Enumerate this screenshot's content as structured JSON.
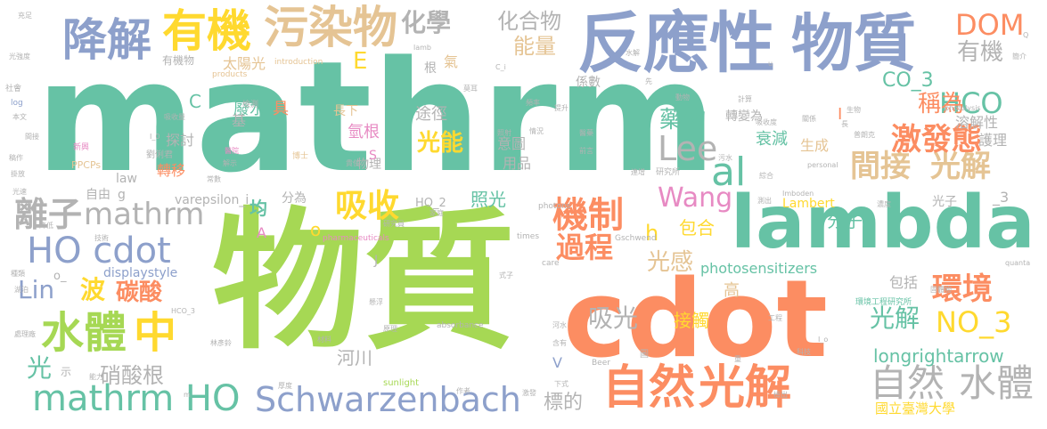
{
  "word_cloud": {
    "words": [
      {
        "text": "mathrm",
        "color": "#66c2a5"
      },
      {
        "text": "物質",
        "color": "#a6d854"
      },
      {
        "text": "cdot",
        "color": "#fc8d62"
      },
      {
        "text": "lambda",
        "color": "#66c2a5"
      },
      {
        "text": "反應性",
        "color": "#8da0cb"
      },
      {
        "text": "物質",
        "color": "#8da0cb"
      },
      {
        "text": "降解",
        "color": "#8da0cb"
      },
      {
        "text": "有機",
        "color": "#ffd92f"
      },
      {
        "text": "污染物",
        "color": "#e5c494"
      },
      {
        "text": "自然",
        "color": "#fc8d62"
      },
      {
        "text": "光解",
        "color": "#fc8d62"
      },
      {
        "text": "水體",
        "color": "#a6d854"
      },
      {
        "text": "中",
        "color": "#ffd92f"
      },
      {
        "text": "HO cdot",
        "color": "#8da0cb"
      },
      {
        "text": "mathrm HO",
        "color": "#66c2a5"
      },
      {
        "text": "Schwarzenbach",
        "color": "#8da0cb"
      },
      {
        "text": "離子",
        "color": "#b3b3b3"
      },
      {
        "text": "mathrm",
        "color": "#b3b3b3"
      },
      {
        "text": "機制",
        "color": "#fc8d62"
      },
      {
        "text": "al",
        "color": "#66c2a5"
      },
      {
        "text": "Lee",
        "color": "#b3b3b3"
      },
      {
        "text": "自然",
        "color": "#b3b3b3"
      },
      {
        "text": "水體",
        "color": "#b3b3b3"
      },
      {
        "text": "間接",
        "color": "#e5c494"
      },
      {
        "text": "光解",
        "color": "#e5c494"
      },
      {
        "text": "激發態",
        "color": "#fc8d62"
      },
      {
        "text": "環境",
        "color": "#fc8d62"
      },
      {
        "text": "NO_3",
        "color": "#ffd92f"
      },
      {
        "text": "HCO",
        "color": "#66c2a5"
      },
      {
        "text": "DOM",
        "color": "#fc8d62"
      },
      {
        "text": "有機",
        "color": "#b3b3b3"
      },
      {
        "text": "化學",
        "color": "#b3b3b3"
      },
      {
        "text": "化合物",
        "color": "#b3b3b3"
      },
      {
        "text": "能量",
        "color": "#e5c494"
      },
      {
        "text": "吸收",
        "color": "#ffd92f"
      },
      {
        "text": "過程",
        "color": "#fc8d62"
      },
      {
        "text": "光感",
        "color": "#e5c494"
      },
      {
        "text": "Wang",
        "color": "#e78ac3"
      },
      {
        "text": "Lin",
        "color": "#8da0cb"
      },
      {
        "text": "波",
        "color": "#ffd92f"
      },
      {
        "text": "吸光",
        "color": "#b3b3b3"
      },
      {
        "text": "光解",
        "color": "#66c2a5"
      },
      {
        "text": "光",
        "color": "#66c2a5"
      },
      {
        "text": "碳酸",
        "color": "#fc8d62"
      },
      {
        "text": "硝酸根",
        "color": "#b3b3b3"
      },
      {
        "text": "藥物",
        "color": "#66c2a5"
      },
      {
        "text": "光能",
        "color": "#ffd92f"
      },
      {
        "text": "稱為",
        "color": "#fc8d62"
      },
      {
        "text": "CO_3",
        "color": "#66c2a5"
      },
      {
        "text": "longrightarrow",
        "color": "#66c2a5"
      },
      {
        "text": "photosensitizers",
        "color": "#66c2a5"
      },
      {
        "text": "標的",
        "color": "#b3b3b3"
      },
      {
        "text": "國立臺灣大學",
        "color": "#ffd92f"
      },
      {
        "text": "河川",
        "color": "#b3b3b3"
      },
      {
        "text": "分子",
        "color": "#66c2a5"
      },
      {
        "text": "包合",
        "color": "#ffd92f"
      },
      {
        "text": "接觸",
        "color": "#ffd92f"
      },
      {
        "text": "照光",
        "color": "#66c2a5"
      },
      {
        "text": "衰減",
        "color": "#66c2a5"
      },
      {
        "text": "氫根",
        "color": "#e78ac3"
      },
      {
        "text": "均",
        "color": "#66c2a5"
      },
      {
        "text": "太陽光",
        "color": "#e5c494"
      },
      {
        "text": "廢水",
        "color": "#66c2a5"
      },
      {
        "text": "途徑",
        "color": "#b3b3b3"
      },
      {
        "text": "溶解性",
        "color": "#b3b3b3"
      },
      {
        "text": "護理",
        "color": "#b3b3b3"
      },
      {
        "text": "轉變為",
        "color": "#b3b3b3"
      },
      {
        "text": "意圖",
        "color": "#b3b3b3"
      },
      {
        "text": "轉移",
        "color": "#fc8d62"
      },
      {
        "text": "探討",
        "color": "#b3b3b3"
      },
      {
        "text": "生成",
        "color": "#e5c494"
      },
      {
        "text": "包括",
        "color": "#b3b3b3"
      },
      {
        "text": "用品",
        "color": "#b3b3b3"
      },
      {
        "text": "物理",
        "color": "#b3b3b3"
      },
      {
        "text": "係數",
        "color": "#b3b3b3"
      },
      {
        "text": "長下",
        "color": "#e5c494"
      },
      {
        "text": "Lambert",
        "color": "#ffd92f"
      },
      {
        "text": "varepsilon_i",
        "color": "#b3b3b3"
      },
      {
        "text": "HO_2",
        "color": "#b3b3b3"
      },
      {
        "text": "分為",
        "color": "#b3b3b3"
      },
      {
        "text": "displaystyle",
        "color": "#8da0cb"
      },
      {
        "text": "law",
        "color": "#b3b3b3"
      },
      {
        "text": "自由",
        "color": "#b3b3b3"
      },
      {
        "text": "高",
        "color": "#e5c494"
      },
      {
        "text": "光子",
        "color": "#b3b3b3"
      },
      {
        "text": "_3",
        "color": "#b3b3b3"
      },
      {
        "text": "有機物",
        "color": "#b3b3b3"
      },
      {
        "text": "E",
        "color": "#ffd92f"
      },
      {
        "text": "C",
        "color": "#66c2a5"
      },
      {
        "text": "h",
        "color": "#ffd92f"
      },
      {
        "text": "o",
        "color": "#ffd92f"
      },
      {
        "text": "A",
        "color": "#e78ac3"
      },
      {
        "text": "J",
        "color": "#b3b3b3"
      },
      {
        "text": "I",
        "color": "#fc8d62"
      },
      {
        "text": "V",
        "color": "#8da0cb"
      },
      {
        "text": "g",
        "color": "#b3b3b3"
      },
      {
        "text": "S",
        "color": "#e78ac3"
      },
      {
        "text": "o_",
        "color": "#b3b3b3"
      },
      {
        "text": "基",
        "color": "#b3b3b3"
      },
      {
        "text": "具",
        "color": "#fc8d62"
      },
      {
        "text": "根",
        "color": "#b3b3b3"
      },
      {
        "text": "氣",
        "color": "#e5c494"
      },
      {
        "text": "示",
        "color": "#b3b3b3"
      },
      {
        "text": "introduction",
        "color": "#e5c494"
      },
      {
        "text": "products",
        "color": "#e5c494"
      },
      {
        "text": "PPCPs",
        "color": "#e5c494"
      },
      {
        "text": "劉俐君",
        "color": "#b3b3b3"
      },
      {
        "text": "檢測",
        "color": "#b3b3b3"
      },
      {
        "text": "新興",
        "color": "#e78ac3"
      },
      {
        "text": "博士",
        "color": "#e5c494"
      },
      {
        "text": "醫院",
        "color": "#e78ac3"
      },
      {
        "text": "常數",
        "color": "#b3b3b3"
      },
      {
        "text": "解示",
        "color": "#b3b3b3"
      },
      {
        "text": "研究所",
        "color": "#b3b3b3"
      },
      {
        "text": "水解",
        "color": "#b3b3b3"
      },
      {
        "text": "簡介",
        "color": "#b3b3b3"
      },
      {
        "text": "光強度",
        "color": "#b3b3b3"
      },
      {
        "text": "社會",
        "color": "#b3b3b3"
      },
      {
        "text": "log",
        "color": "#8da0cb"
      },
      {
        "text": "本文",
        "color": "#b3b3b3"
      },
      {
        "text": "間接",
        "color": "#b3b3b3"
      },
      {
        "text": "稿作",
        "color": "#b3b3b3"
      },
      {
        "text": "掛放",
        "color": "#b3b3b3"
      },
      {
        "text": "光速",
        "color": "#b3b3b3"
      },
      {
        "text": "降低",
        "color": "#b3b3b3"
      },
      {
        "text": "技術",
        "color": "#b3b3b3"
      },
      {
        "text": "種類",
        "color": "#b3b3b3"
      },
      {
        "text": "湖泊",
        "color": "#b3b3b3"
      },
      {
        "text": "處理廠",
        "color": "#b3b3b3"
      },
      {
        "text": "林彥鈴",
        "color": "#b3b3b3"
      },
      {
        "text": "能力",
        "color": "#b3b3b3"
      },
      {
        "text": "HCO_3",
        "color": "#b3b3b3"
      },
      {
        "text": "吸收量",
        "color": "#b3b3b3"
      },
      {
        "text": "I_0",
        "color": "#b3b3b3"
      },
      {
        "text": "pharmaceuticals",
        "color": "#e78ac3"
      },
      {
        "text": "Gschwend",
        "color": "#b3b3b3"
      },
      {
        "text": "photons",
        "color": "#b3b3b3"
      },
      {
        "text": "times",
        "color": "#b3b3b3"
      },
      {
        "text": "care",
        "color": "#b3b3b3"
      },
      {
        "text": "absorbance",
        "color": "#b3b3b3"
      },
      {
        "text": "sunlight",
        "color": "#a6d854"
      },
      {
        "text": "Beer",
        "color": "#b3b3b3"
      },
      {
        "text": "photolysis",
        "color": "#b3b3b3"
      },
      {
        "text": "personal",
        "color": "#b3b3b3"
      },
      {
        "text": "Imboden",
        "color": "#b3b3b3"
      },
      {
        "text": "quanta",
        "color": "#b3b3b3"
      },
      {
        "text": "環境工程研究所",
        "color": "#66c2a5"
      },
      {
        "text": "固體物",
        "color": "#b3b3b3"
      },
      {
        "text": "濃度",
        "color": "#b3b3b3"
      },
      {
        "text": "工程",
        "color": "#b3b3b3"
      },
      {
        "text": "科技",
        "color": "#b3b3b3"
      },
      {
        "text": "檢出",
        "color": "#b3b3b3"
      },
      {
        "text": "作者",
        "color": "#b3b3b3"
      },
      {
        "text": "下式",
        "color": "#b3b3b3"
      },
      {
        "text": "厚度",
        "color": "#b3b3b3"
      },
      {
        "text": "材料",
        "color": "#b3b3b3"
      },
      {
        "text": "頻率",
        "color": "#b3b3b3"
      },
      {
        "text": "提升",
        "color": "#b3b3b3"
      },
      {
        "text": "情況",
        "color": "#b3b3b3"
      },
      {
        "text": "前言",
        "color": "#b3b3b3"
      },
      {
        "text": "連增",
        "color": "#b3b3b3"
      },
      {
        "text": "污水",
        "color": "#b3b3b3"
      },
      {
        "text": "動物",
        "color": "#b3b3b3"
      },
      {
        "text": "計算",
        "color": "#b3b3b3"
      },
      {
        "text": "吸收度",
        "color": "#b3b3b3"
      },
      {
        "text": "普朗克",
        "color": "#b3b3b3"
      },
      {
        "text": "關係",
        "color": "#b3b3b3"
      },
      {
        "text": "綜合",
        "color": "#b3b3b3"
      },
      {
        "text": "測出",
        "color": "#b3b3b3"
      },
      {
        "text": "家庭",
        "color": "#b3b3b3"
      },
      {
        "text": "研究員",
        "color": "#b3b3b3"
      },
      {
        "text": "懸浮",
        "color": "#b3b3b3"
      },
      {
        "text": "原理",
        "color": "#b3b3b3"
      },
      {
        "text": "河水",
        "color": "#b3b3b3"
      },
      {
        "text": "照射",
        "color": "#b3b3b3"
      },
      {
        "text": "式子",
        "color": "#b3b3b3"
      },
      {
        "text": "莫耳",
        "color": "#b3b3b3"
      },
      {
        "text": "lamb",
        "color": "#b3b3b3"
      },
      {
        "text": "C_i",
        "color": "#b3b3b3"
      },
      {
        "text": "充足",
        "color": "#b3b3b3"
      },
      {
        "text": "生物",
        "color": "#b3b3b3"
      },
      {
        "text": "長",
        "color": "#b3b3b3"
      },
      {
        "text": "先",
        "color": "#b3b3b3"
      },
      {
        "text": "醫藥",
        "color": "#b3b3b3"
      },
      {
        "text": "激發",
        "color": "#b3b3b3"
      },
      {
        "text": "含有",
        "color": "#b3b3b3"
      },
      {
        "text": "貴使",
        "color": "#b3b3b3"
      },
      {
        "text": "圖",
        "color": "#b3b3b3"
      },
      {
        "text": "重",
        "color": "#b3b3b3"
      },
      {
        "text": "I_o",
        "color": "#b3b3b3"
      },
      {
        "text": "m",
        "color": "#b3b3b3"
      },
      {
        "text": "u",
        "color": "#b3b3b3"
      },
      {
        "text": "Q",
        "color": "#b3b3b3"
      }
    ]
  }
}
